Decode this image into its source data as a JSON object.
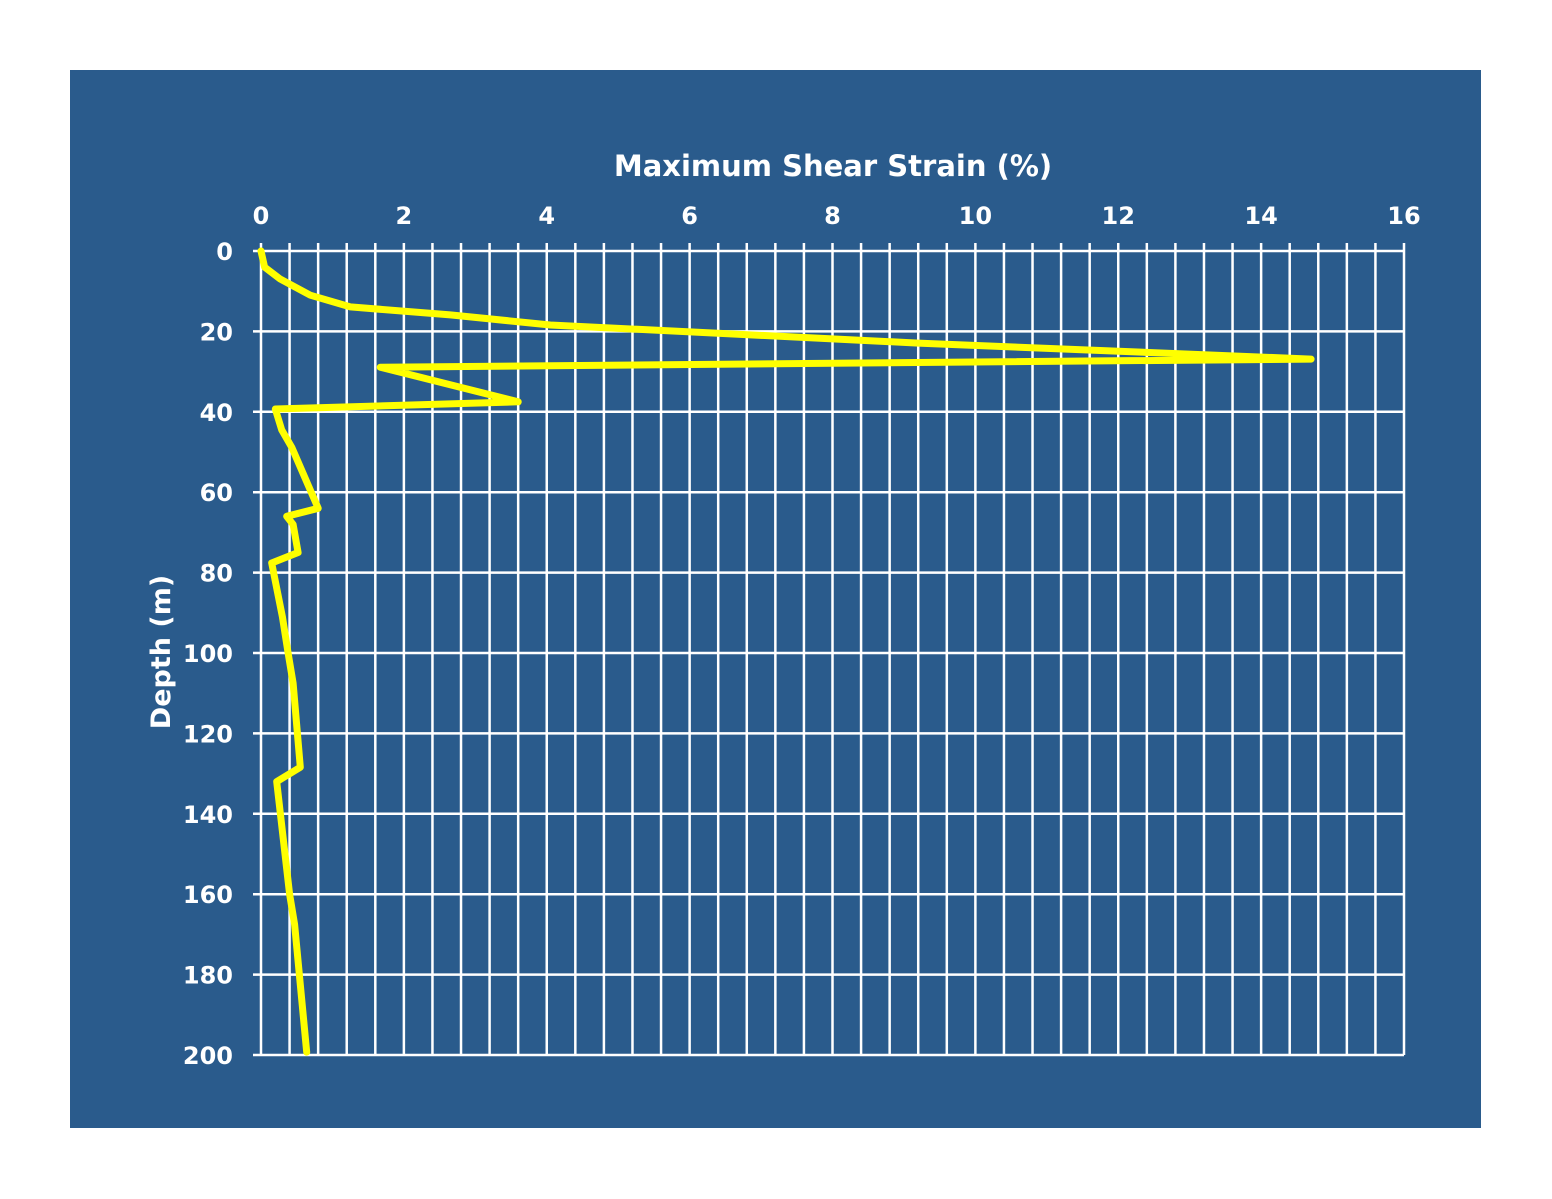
{
  "chart_data": {
    "type": "line",
    "title": "Maximum Shear Strain (%)",
    "xlabel": "Maximum Shear Strain (%)",
    "ylabel": "Depth (m)",
    "xlim": [
      0,
      16
    ],
    "ylim": [
      0,
      200
    ],
    "y_inverted": true,
    "x_axis_position": "top",
    "x_ticks": [
      0,
      2,
      4,
      6,
      8,
      10,
      12,
      14,
      16
    ],
    "y_ticks": [
      0,
      20,
      40,
      60,
      80,
      100,
      120,
      140,
      160,
      180,
      200
    ],
    "x_minor_grid_step": 0.4,
    "grid": true,
    "legend": "none",
    "colors": {
      "background": "#2a5b8c",
      "page": "#ffffff",
      "grid": "#ffffff",
      "line": "#ffff00",
      "text": "#ffffff"
    },
    "series": [
      {
        "x": [
          0,
          0.05,
          0.27,
          0.69,
          1.25,
          2.65,
          4.05,
          9.2,
          14.7,
          1.67,
          3.6,
          0.2,
          0.29,
          0.43,
          0.8,
          0.36,
          0.45,
          0.52,
          0.15,
          0.3,
          0.38,
          0.45,
          0.55,
          0.22,
          0.4,
          0.47,
          0.64
        ],
        "y": [
          0,
          4,
          7,
          11,
          13.9,
          15.9,
          18.4,
          22.9,
          26.9,
          28.9,
          37.5,
          39.3,
          44.5,
          48.8,
          64,
          66,
          68,
          75,
          77.6,
          91,
          100,
          107.5,
          128.4,
          132,
          160,
          167.5,
          199.3
        ]
      }
    ]
  }
}
